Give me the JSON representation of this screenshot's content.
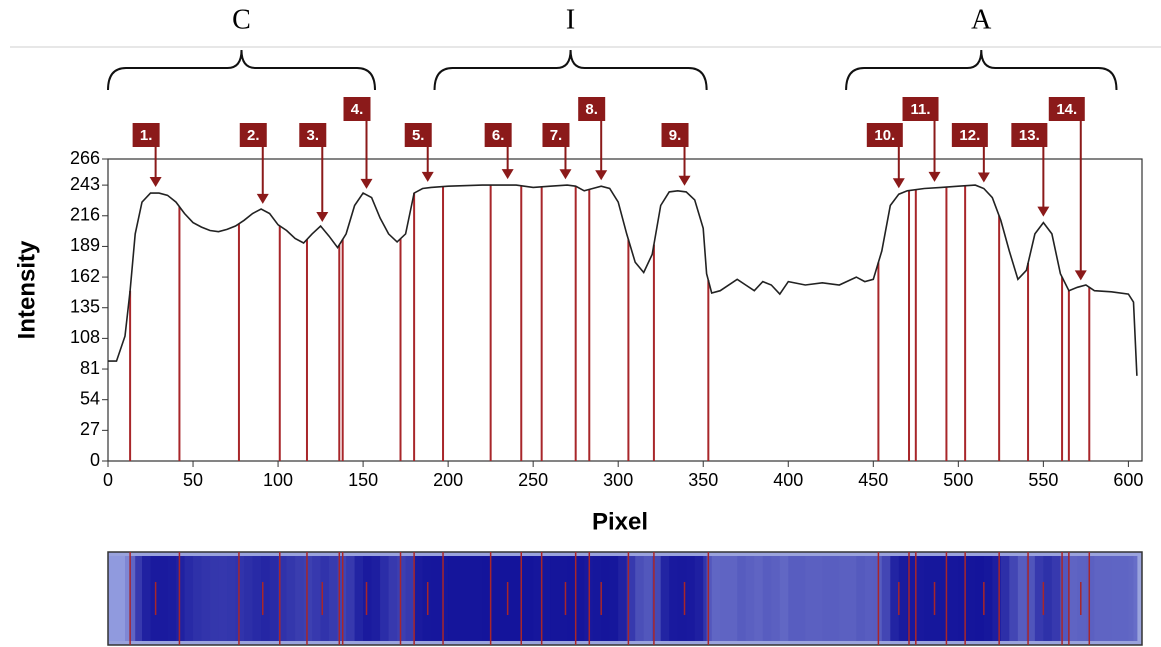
{
  "chart_data": {
    "type": "line",
    "x_label": "Pixel",
    "y_label": "Intensity",
    "xlim": [
      0,
      608
    ],
    "ylim": [
      0,
      266
    ],
    "xticks": [
      0,
      50,
      100,
      150,
      200,
      250,
      300,
      350,
      400,
      450,
      500,
      550,
      600
    ],
    "yticks": [
      0,
      27,
      54,
      81,
      108,
      135,
      162,
      189,
      216,
      243,
      266
    ],
    "color": "#222222",
    "series": [
      {
        "x": [
          0,
          5,
          10,
          13,
          16,
          20,
          25,
          30,
          35,
          40,
          45,
          50,
          55,
          60,
          65,
          70,
          75,
          80,
          85,
          90,
          95,
          100,
          105,
          110,
          115,
          120,
          125,
          130,
          135,
          140,
          145,
          150,
          155,
          160,
          165,
          170,
          175,
          180,
          185,
          190,
          200,
          220,
          240,
          250,
          260,
          270,
          275,
          280,
          285,
          290,
          295,
          300,
          305,
          310,
          315,
          320,
          325,
          330,
          335,
          340,
          345,
          350,
          352,
          355,
          360,
          370,
          375,
          380,
          385,
          390,
          395,
          400,
          410,
          420,
          430,
          440,
          445,
          450,
          455,
          460,
          465,
          470,
          480,
          490,
          500,
          510,
          515,
          520,
          525,
          530,
          535,
          540,
          545,
          550,
          555,
          560,
          565,
          570,
          575,
          580,
          590,
          600,
          603,
          605
        ],
        "values": [
          88,
          88,
          110,
          150,
          200,
          228,
          236,
          236,
          234,
          228,
          218,
          210,
          206,
          203,
          202,
          204,
          207,
          212,
          218,
          222,
          218,
          208,
          203,
          196,
          192,
          200,
          207,
          198,
          188,
          200,
          225,
          236,
          232,
          214,
          200,
          193,
          200,
          236,
          240,
          241,
          242,
          243,
          243,
          241,
          242,
          243,
          242,
          238,
          240,
          242,
          240,
          228,
          200,
          175,
          166,
          182,
          225,
          237,
          238,
          237,
          230,
          205,
          165,
          148,
          150,
          160,
          155,
          150,
          158,
          155,
          147,
          158,
          155,
          157,
          155,
          162,
          158,
          160,
          185,
          225,
          235,
          238,
          240,
          241,
          242,
          243,
          240,
          232,
          212,
          185,
          160,
          168,
          200,
          210,
          200,
          165,
          150,
          153,
          155,
          150,
          149,
          147,
          140,
          75
        ]
      }
    ],
    "boundaries": [
      13,
      42,
      77,
      101,
      117,
      136,
      138,
      172,
      180,
      197,
      225,
      243,
      255,
      275,
      283,
      306,
      321,
      353,
      453,
      471,
      475,
      493,
      504,
      524,
      541,
      561,
      565,
      577
    ],
    "boundary_color": "#a8262a",
    "peaks": [
      {
        "label": "1.",
        "x": 28
      },
      {
        "label": "2.",
        "x": 91
      },
      {
        "label": "3.",
        "x": 126
      },
      {
        "label": "4.",
        "x": 152
      },
      {
        "label": "5.",
        "x": 188
      },
      {
        "label": "6.",
        "x": 235
      },
      {
        "label": "7.",
        "x": 269
      },
      {
        "label": "8.",
        "x": 290
      },
      {
        "label": "9.",
        "x": 339
      },
      {
        "label": "10.",
        "x": 465
      },
      {
        "label": "11.",
        "x": 486
      },
      {
        "label": "12.",
        "x": 515
      },
      {
        "label": "13.",
        "x": 550
      },
      {
        "label": "14.",
        "x": 572
      }
    ],
    "peak_color": "#8b1a1a",
    "regions": [
      {
        "label": "C",
        "start": 0,
        "end": 157
      },
      {
        "label": "I",
        "start": 192,
        "end": 352
      },
      {
        "label": "A",
        "start": 434,
        "end": 593
      }
    ]
  }
}
